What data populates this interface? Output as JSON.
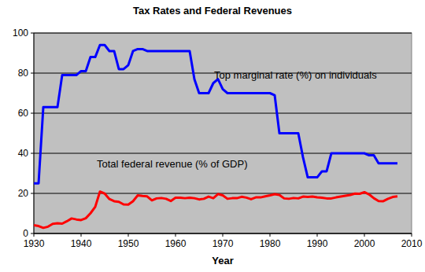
{
  "chart_data": {
    "type": "line",
    "title": "Tax Rates and Federal Revenues",
    "x_label": "Year",
    "x": [
      1930,
      1931,
      1932,
      1933,
      1934,
      1935,
      1936,
      1937,
      1938,
      1939,
      1940,
      1941,
      1942,
      1943,
      1944,
      1945,
      1946,
      1947,
      1948,
      1949,
      1950,
      1951,
      1952,
      1953,
      1954,
      1955,
      1956,
      1957,
      1958,
      1959,
      1960,
      1961,
      1962,
      1963,
      1964,
      1965,
      1966,
      1967,
      1968,
      1969,
      1970,
      1971,
      1972,
      1973,
      1974,
      1975,
      1976,
      1977,
      1978,
      1979,
      1980,
      1981,
      1982,
      1983,
      1984,
      1985,
      1986,
      1987,
      1988,
      1989,
      1990,
      1991,
      1992,
      1993,
      1994,
      1995,
      1996,
      1997,
      1998,
      1999,
      2000,
      2001,
      2002,
      2003,
      2004,
      2005,
      2006,
      2007
    ],
    "series": [
      {
        "name": "Top marginal rate (%) on individuals",
        "color": "#0000ff",
        "values": [
          25,
          25,
          63,
          63,
          63,
          63,
          79,
          79,
          79,
          79,
          81,
          81,
          88,
          88,
          94,
          94,
          91,
          91,
          82,
          82,
          84,
          91,
          92,
          92,
          91,
          91,
          91,
          91,
          91,
          91,
          91,
          91,
          91,
          91,
          77,
          70,
          70,
          70,
          75,
          77,
          72,
          70,
          70,
          70,
          70,
          70,
          70,
          70,
          70,
          70,
          70,
          69,
          50,
          50,
          50,
          50,
          50,
          38,
          28,
          28,
          28,
          31,
          31,
          40,
          40,
          40,
          40,
          40,
          40,
          40,
          40,
          39,
          39,
          35,
          35,
          35,
          35,
          35
        ]
      },
      {
        "name": "Total federal revenue (% of GDP)",
        "color": "#ff0000",
        "values": [
          4.1,
          3.7,
          2.8,
          3.4,
          4.8,
          5.1,
          4.9,
          6.1,
          7.5,
          7.0,
          6.7,
          7.6,
          10.1,
          13.3,
          20.9,
          19.9,
          17.2,
          16.1,
          15.8,
          14.5,
          14.4,
          16.1,
          19.0,
          18.7,
          18.5,
          16.5,
          17.5,
          17.7,
          17.3,
          16.2,
          17.8,
          17.8,
          17.6,
          17.8,
          17.6,
          17.0,
          17.3,
          18.4,
          17.6,
          19.7,
          19.0,
          17.3,
          17.6,
          17.6,
          18.3,
          17.9,
          17.1,
          18.0,
          18.0,
          18.5,
          19.0,
          19.6,
          19.2,
          17.5,
          17.3,
          17.7,
          17.5,
          18.4,
          18.2,
          18.4,
          18.0,
          17.8,
          17.5,
          17.5,
          18.0,
          18.4,
          18.8,
          19.2,
          19.9,
          19.8,
          20.6,
          19.5,
          17.6,
          16.2,
          16.1,
          17.3,
          18.2,
          18.5
        ]
      }
    ],
    "xlim": [
      1930,
      2010
    ],
    "xticks": [
      1930,
      1940,
      1950,
      1960,
      1970,
      1980,
      1990,
      2000,
      2010
    ],
    "ylim": [
      0,
      100
    ],
    "yticks": [
      0,
      20,
      40,
      60,
      80,
      100
    ],
    "grid": true
  }
}
